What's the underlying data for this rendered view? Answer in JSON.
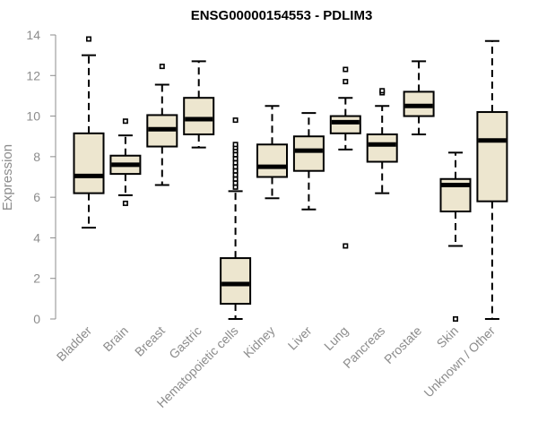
{
  "chart_data": {
    "type": "box",
    "title": "ENSG00000154553 - PDLIM3",
    "xlabel": "",
    "ylabel": "Expression",
    "ylim": [
      0,
      14
    ],
    "yticks": [
      0,
      2,
      4,
      6,
      8,
      10,
      12,
      14
    ],
    "grid": false,
    "box_fill": "#ede6cf",
    "categories": [
      "Bladder",
      "Brain",
      "Breast",
      "Gastric",
      "Hematopoietic cells",
      "Kidney",
      "Liver",
      "Lung",
      "Pancreas",
      "Prostate",
      "Skin",
      "Unknown / Other"
    ],
    "boxes": [
      {
        "whisker_low": 4.5,
        "q1": 6.2,
        "median": 7.05,
        "q3": 9.15,
        "whisker_high": 13.0,
        "outliers": [
          13.8
        ]
      },
      {
        "whisker_low": 6.1,
        "q1": 7.15,
        "median": 7.6,
        "q3": 8.05,
        "whisker_high": 9.05,
        "outliers": [
          5.7,
          9.75
        ]
      },
      {
        "whisker_low": 6.6,
        "q1": 8.5,
        "median": 9.35,
        "q3": 10.05,
        "whisker_high": 11.55,
        "outliers": [
          12.45
        ]
      },
      {
        "whisker_low": 8.45,
        "q1": 9.1,
        "median": 9.85,
        "q3": 10.9,
        "whisker_high": 12.7,
        "outliers": []
      },
      {
        "whisker_low": 0.0,
        "q1": 0.75,
        "median": 1.72,
        "q3": 3.0,
        "whisker_high": 6.3,
        "outliers": [
          6.5,
          6.7,
          6.9,
          7.1,
          7.3,
          7.5,
          7.7,
          7.9,
          8.1,
          8.3,
          8.45,
          8.6,
          9.8
        ]
      },
      {
        "whisker_low": 5.95,
        "q1": 7.0,
        "median": 7.5,
        "q3": 8.6,
        "whisker_high": 10.5,
        "outliers": []
      },
      {
        "whisker_low": 5.4,
        "q1": 7.3,
        "median": 8.3,
        "q3": 9.0,
        "whisker_high": 10.15,
        "outliers": []
      },
      {
        "whisker_low": 8.35,
        "q1": 9.15,
        "median": 9.7,
        "q3": 10.0,
        "whisker_high": 10.9,
        "outliers": [
          3.6,
          11.7,
          12.3
        ]
      },
      {
        "whisker_low": 6.2,
        "q1": 7.75,
        "median": 8.6,
        "q3": 9.1,
        "whisker_high": 10.5,
        "outliers": [
          11.15,
          11.25
        ]
      },
      {
        "whisker_low": 9.1,
        "q1": 10.0,
        "median": 10.5,
        "q3": 11.2,
        "whisker_high": 12.7,
        "outliers": []
      },
      {
        "whisker_low": 3.6,
        "q1": 5.3,
        "median": 6.6,
        "q3": 6.9,
        "whisker_high": 8.2,
        "outliers": [
          0.0
        ]
      },
      {
        "whisker_low": 0.0,
        "q1": 5.8,
        "median": 8.8,
        "q3": 10.2,
        "whisker_high": 13.7,
        "outliers": []
      }
    ]
  }
}
